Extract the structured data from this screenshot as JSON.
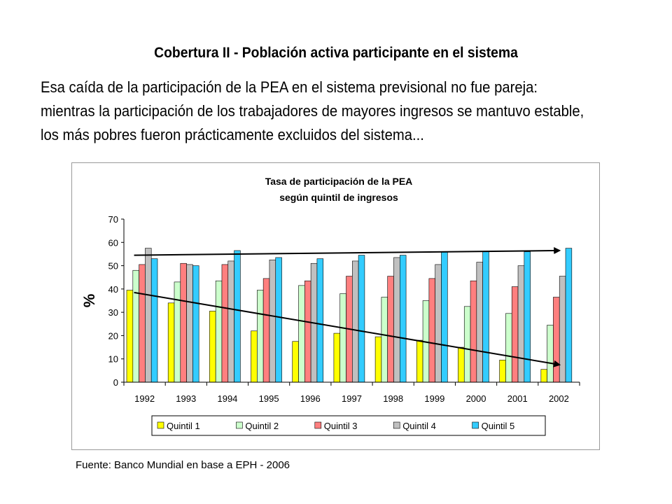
{
  "slide": {
    "title": "Cobertura II - Población activa participante en el sistema",
    "body": "Esa caída de la participación de la PEA en el sistema previsional no fue pareja: mientras la participación de los trabajadores de mayores ingresos se mantuvo estable, los más pobres fueron prácticamente excluidos del sistema...",
    "source": "Fuente: Banco Mundial en base a EPH - 2006"
  },
  "chart_data": {
    "type": "bar",
    "title": "Tasa de participación de la PEA",
    "subtitle": "según quintil de ingresos",
    "xlabel": "",
    "ylabel": "%",
    "ylim": [
      0,
      70
    ],
    "yticks": [
      0,
      10,
      20,
      30,
      40,
      50,
      60,
      70
    ],
    "grid": false,
    "legend_position": "bottom",
    "categories": [
      "1992",
      "1993",
      "1994",
      "1995",
      "1996",
      "1997",
      "1998",
      "1999",
      "2000",
      "2001",
      "2002"
    ],
    "series": [
      {
        "name": "Quintil 1",
        "color": "#ffff00",
        "values": [
          39.5,
          34,
          30.5,
          22,
          17.5,
          21,
          19.5,
          18,
          15,
          9.5,
          5.5
        ]
      },
      {
        "name": "Quintil 2",
        "color": "#ccffcc",
        "values": [
          48,
          43,
          43.5,
          39.5,
          41.5,
          38,
          36.5,
          35,
          32.5,
          29.5,
          24.5
        ]
      },
      {
        "name": "Quintil 3",
        "color": "#ff7f7f",
        "values": [
          50.5,
          51,
          50.5,
          44.5,
          43.5,
          45.5,
          45.5,
          44.5,
          43.5,
          41,
          36.5
        ]
      },
      {
        "name": "Quintil 4",
        "color": "#c0c0c0",
        "values": [
          57.5,
          50.5,
          52,
          52.5,
          51,
          52,
          53.5,
          50.5,
          51.5,
          50,
          45.5
        ]
      },
      {
        "name": "Quintil 5",
        "color": "#33ccff",
        "values": [
          53,
          50,
          56.5,
          53.5,
          53,
          54.5,
          54.5,
          56,
          56,
          56,
          57.5
        ]
      }
    ],
    "trend_arrows": [
      {
        "from": {
          "x": "1992",
          "y": 54.5
        },
        "to": {
          "x": "2002",
          "y": 56.5
        }
      },
      {
        "from": {
          "x": "1992",
          "y": 38.5
        },
        "to": {
          "x": "2002",
          "y": 7.5
        }
      }
    ]
  }
}
